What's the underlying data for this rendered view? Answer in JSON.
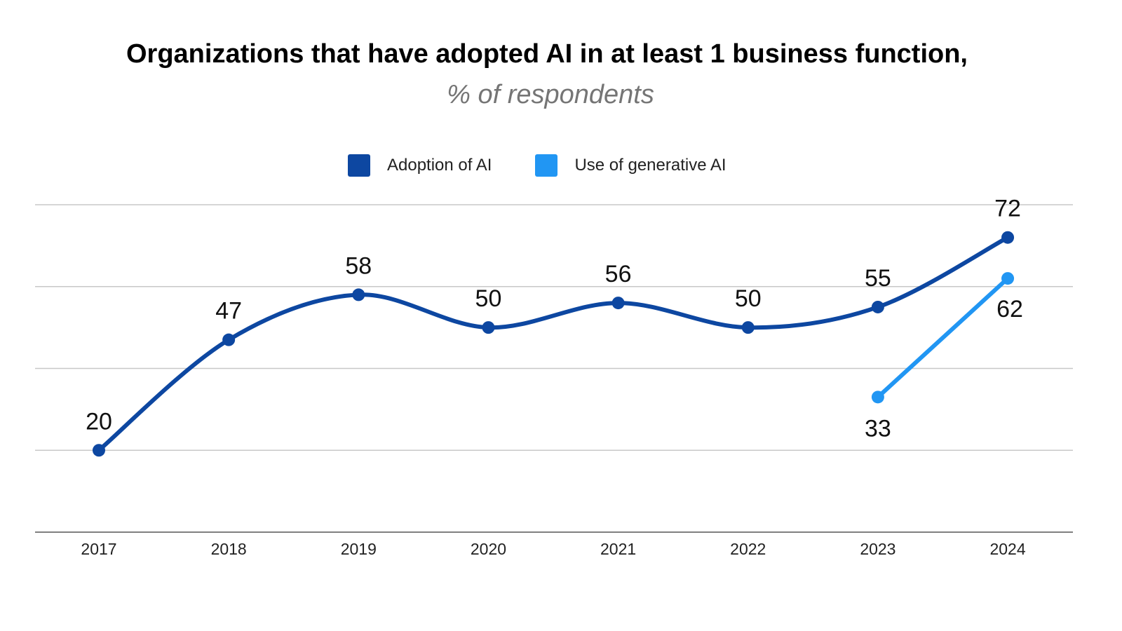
{
  "chart_data": {
    "type": "line",
    "title": "Organizations that have adopted AI in at least 1 business function,",
    "subtitle": "% of respondents",
    "categories": [
      "2017",
      "2018",
      "2019",
      "2020",
      "2021",
      "2022",
      "2023",
      "2024"
    ],
    "ylim": [
      0,
      80
    ],
    "grid": true,
    "legend_position": "top",
    "series": [
      {
        "name": "Adoption of AI",
        "color": "#0d47a1",
        "smooth": true,
        "values": [
          20,
          47,
          58,
          50,
          56,
          50,
          55,
          72
        ]
      },
      {
        "name": "Use of generative AI",
        "color": "#2196f3",
        "smooth": false,
        "values": [
          null,
          null,
          null,
          null,
          null,
          null,
          33,
          62
        ]
      }
    ]
  }
}
